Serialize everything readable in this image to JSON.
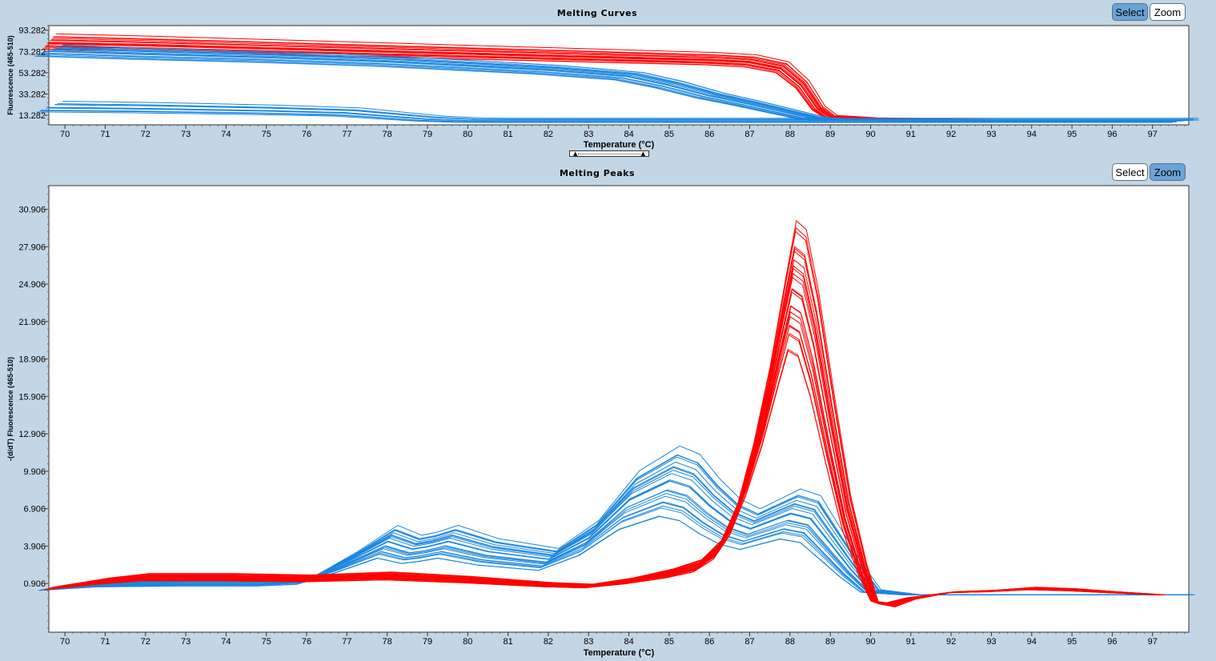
{
  "top": {
    "title": "Melting Curves",
    "select_label": "Select",
    "zoom_label": "Zoom",
    "active_mode": "select"
  },
  "bottom": {
    "title": "Melting Peaks",
    "select_label": "Select",
    "zoom_label": "Zoom",
    "active_mode": "zoom"
  },
  "colors": {
    "background": "#c2d6e6",
    "series_a": "#ff0000",
    "series_b": "#1a86e0",
    "button_active": "#6aa3da"
  },
  "chart_data": [
    {
      "type": "line",
      "title": "Melting Curves",
      "xlabel": "Temperature (°C)",
      "ylabel": "Fluorescence (465-510)",
      "xlim": [
        69.6,
        97.9
      ],
      "ylim": [
        4.3,
        97.6
      ],
      "x_ticks": [
        "70",
        "71",
        "72",
        "73",
        "74",
        "75",
        "76",
        "77",
        "78",
        "79",
        "80",
        "81",
        "82",
        "83",
        "84",
        "85",
        "86",
        "87",
        "88",
        "89",
        "90",
        "91",
        "92",
        "93",
        "94",
        "95",
        "96",
        "97"
      ],
      "y_ticks": [
        "93.282",
        "73.282",
        "53.282",
        "33.282",
        "13.282"
      ],
      "grid": false,
      "series": [
        {
          "color": "#ff0000",
          "x": [
            69.6,
            72,
            75,
            78,
            80,
            82,
            84,
            86,
            87,
            87.8,
            88.3,
            88.7,
            89,
            90,
            92,
            94,
            96.8
          ],
          "y": [
            82,
            80,
            77,
            74,
            72,
            70,
            68,
            66,
            64,
            58,
            42,
            20,
            12,
            10,
            9,
            8.5,
            8.3
          ]
        },
        {
          "color": "#1a86e0",
          "x": [
            69.6,
            72,
            75,
            78,
            80,
            82,
            84,
            85,
            86,
            87,
            87.8,
            88.5,
            89,
            91,
            97.8
          ],
          "y": [
            74,
            71,
            68,
            64,
            60,
            56,
            50,
            42,
            32,
            24,
            17,
            11,
            9,
            8.5,
            8.3
          ]
        },
        {
          "color": "#1a86e0",
          "x": [
            69.6,
            72,
            75,
            77,
            78,
            79,
            80,
            81,
            82,
            97.8
          ],
          "y": [
            21,
            20,
            18,
            16,
            13,
            10,
            8.5,
            8.3,
            8.3,
            8.3
          ]
        }
      ]
    },
    {
      "type": "line",
      "title": "Melting Peaks",
      "xlabel": "Temperature (°C)",
      "ylabel": "-(d/dT) Fluorescence (465-510)",
      "xlim": [
        69.6,
        97.9
      ],
      "ylim": [
        -3.0,
        32.8
      ],
      "x_ticks": [
        "70",
        "71",
        "72",
        "73",
        "74",
        "75",
        "76",
        "77",
        "78",
        "79",
        "80",
        "81",
        "82",
        "83",
        "84",
        "85",
        "86",
        "87",
        "88",
        "89",
        "90",
        "91",
        "92",
        "93",
        "94",
        "95",
        "96",
        "97"
      ],
      "y_ticks": [
        "30.906",
        "27.906",
        "24.906",
        "21.906",
        "18.906",
        "15.906",
        "12.906",
        "9.906",
        "6.906",
        "3.906",
        "0.906"
      ],
      "grid": false,
      "series": [
        {
          "color": "#1a86e0",
          "x": [
            69.6,
            71,
            73,
            75,
            76,
            77,
            78,
            78.6,
            79,
            79.5,
            80,
            80.5,
            81,
            82,
            83,
            84,
            85,
            85.5,
            86,
            86.5,
            87,
            87.5,
            88,
            88.5,
            89,
            89.5,
            90,
            91,
            92,
            97.8
          ],
          "y": [
            0.5,
            0.9,
            1.0,
            1.0,
            1.2,
            2.6,
            4.2,
            3.6,
            3.8,
            4.2,
            3.8,
            3.4,
            3.2,
            2.8,
            4.5,
            7.5,
            9.0,
            8.5,
            7.0,
            5.8,
            5.2,
            5.8,
            6.4,
            6.0,
            4.0,
            2.0,
            0.3,
            0.0,
            0.0,
            0.0
          ]
        },
        {
          "color": "#ff0000",
          "x": [
            69.6,
            71,
            72,
            74,
            76,
            78,
            80,
            82,
            83,
            84,
            85,
            85.7,
            86.2,
            86.6,
            87,
            87.4,
            87.8,
            88.05,
            88.3,
            88.6,
            89,
            89.4,
            89.8,
            90.1,
            90.5,
            91,
            92,
            93,
            94,
            95,
            96,
            97.2
          ],
          "y": [
            0.5,
            1.1,
            1.4,
            1.4,
            1.3,
            1.5,
            1.2,
            0.8,
            0.7,
            1.1,
            1.7,
            2.3,
            3.6,
            6.0,
            10.0,
            15.0,
            21.0,
            24.6,
            24.0,
            20.0,
            13.0,
            6.5,
            2.0,
            -0.6,
            -0.8,
            -0.3,
            0.2,
            0.3,
            0.5,
            0.4,
            0.2,
            0.0
          ]
        }
      ]
    }
  ]
}
